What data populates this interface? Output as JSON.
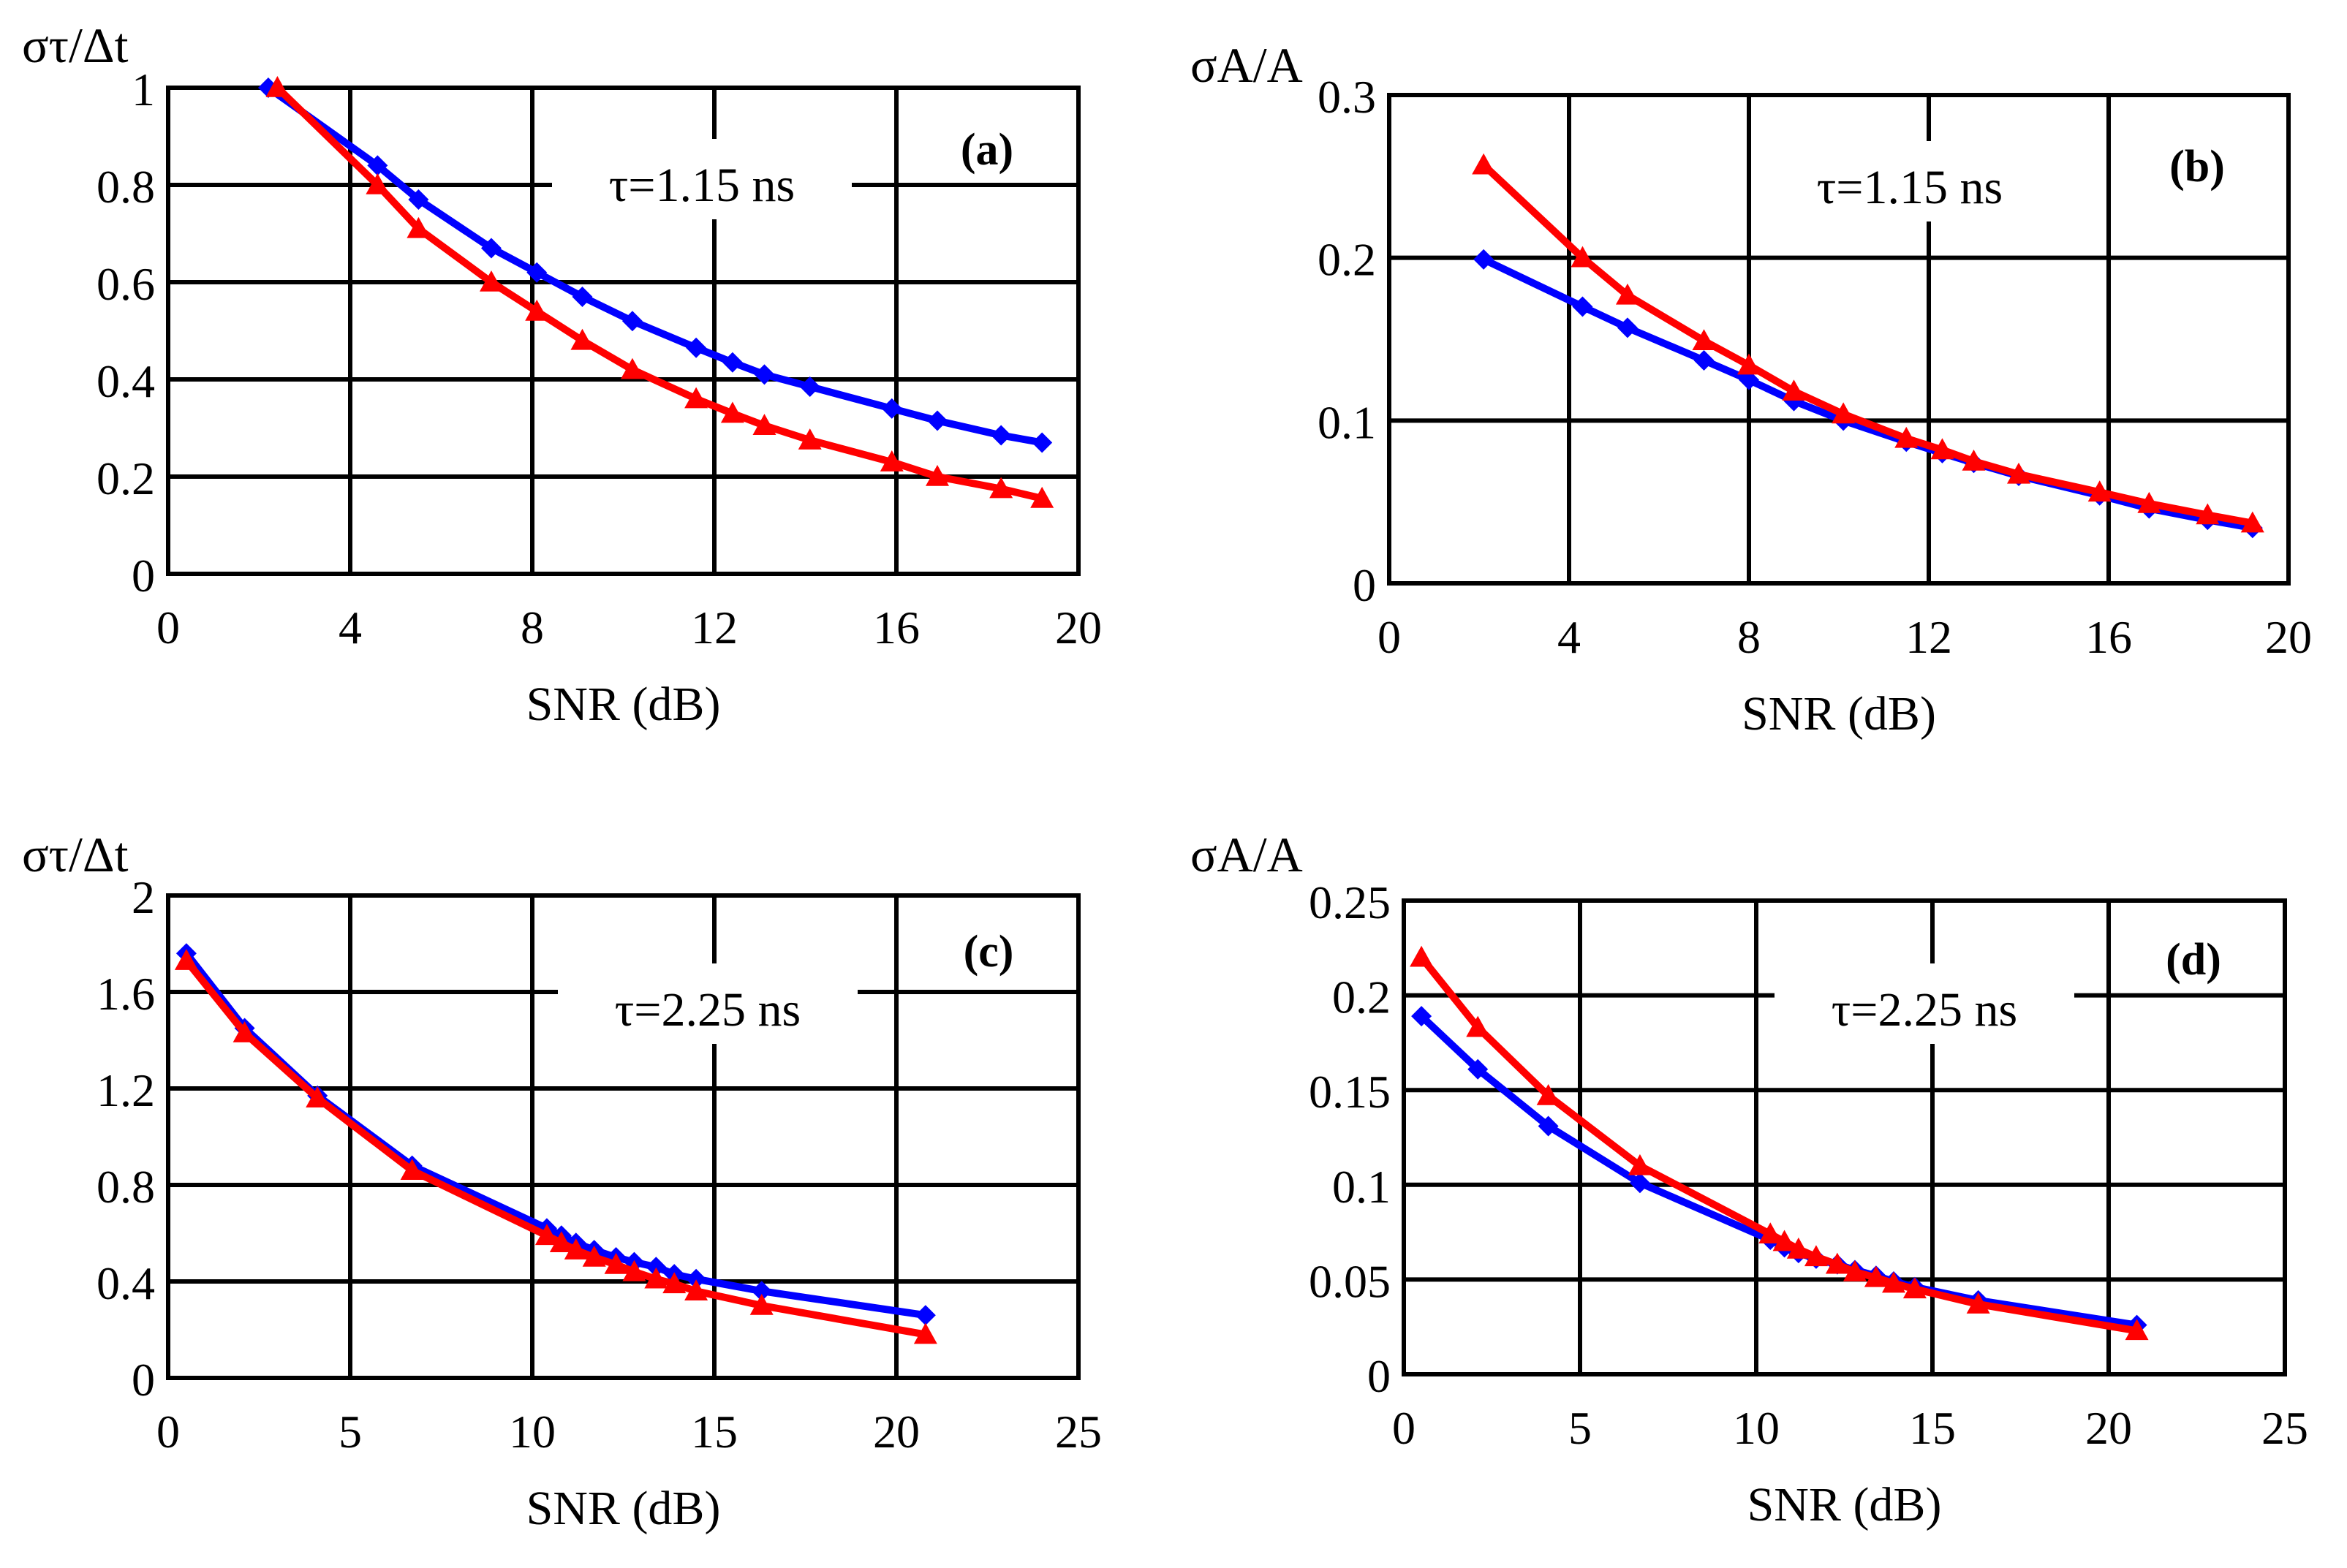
{
  "colors": {
    "blue": "#0000ff",
    "red": "#ff0000",
    "grid": "#000000"
  },
  "chart_data": [
    {
      "type": "line",
      "panel_label": "(a)",
      "annotation": "τ=1.15 ns",
      "ylabel": "στ/Δt",
      "xlabel": "SNR (dB)",
      "xlim": [
        0,
        20
      ],
      "ylim": [
        0,
        1
      ],
      "xticks": [
        0,
        4,
        8,
        12,
        16,
        20
      ],
      "xtick_labels": [
        "0",
        "4",
        "8",
        "12",
        "16",
        "20"
      ],
      "yticks": [
        0,
        0.2,
        0.4,
        0.6,
        0.8,
        1
      ],
      "ytick_labels": [
        "0",
        "0.2",
        "0.4",
        "0.6",
        "0.8",
        "1"
      ],
      "series": [
        {
          "name": "blue",
          "marker": "diamond",
          "x": [
            2.2,
            4.6,
            5.5,
            7.1,
            8.1,
            9.1,
            10.2,
            11.6,
            12.4,
            13.1,
            14.1,
            15.9,
            16.9,
            18.3,
            19.2
          ],
          "y": [
            1.0,
            0.84,
            0.77,
            0.67,
            0.62,
            0.57,
            0.52,
            0.465,
            0.435,
            0.41,
            0.385,
            0.34,
            0.315,
            0.285,
            0.27
          ]
        },
        {
          "name": "red",
          "marker": "triangle",
          "x": [
            2.4,
            4.6,
            5.5,
            7.1,
            8.1,
            9.1,
            10.2,
            11.6,
            12.4,
            13.1,
            14.1,
            15.9,
            16.9,
            18.3,
            19.2
          ],
          "y": [
            1.0,
            0.8,
            0.71,
            0.6,
            0.54,
            0.48,
            0.42,
            0.36,
            0.33,
            0.305,
            0.275,
            0.23,
            0.2,
            0.175,
            0.155
          ]
        }
      ]
    },
    {
      "type": "line",
      "panel_label": "(b)",
      "annotation": "τ=1.15 ns",
      "ylabel": "σA/A",
      "xlabel": "SNR (dB)",
      "xlim": [
        0,
        20
      ],
      "ylim": [
        0,
        0.3
      ],
      "xticks": [
        0,
        4,
        8,
        12,
        16,
        20
      ],
      "xtick_labels": [
        "0",
        "4",
        "8",
        "12",
        "16",
        "20"
      ],
      "yticks": [
        0,
        0.1,
        0.2,
        0.3
      ],
      "ytick_labels": [
        "0",
        "0.1",
        "0.2",
        "0.3"
      ],
      "series": [
        {
          "name": "blue",
          "marker": "diamond",
          "x": [
            2.1,
            4.3,
            5.3,
            7.0,
            8.0,
            9.0,
            10.1,
            11.5,
            12.3,
            13.0,
            14.0,
            15.8,
            16.9,
            18.2,
            19.2
          ],
          "y": [
            0.199,
            0.17,
            0.157,
            0.137,
            0.125,
            0.112,
            0.1,
            0.087,
            0.08,
            0.074,
            0.066,
            0.054,
            0.046,
            0.039,
            0.034
          ]
        },
        {
          "name": "red",
          "marker": "triangle",
          "x": [
            2.1,
            4.3,
            5.3,
            7.0,
            8.0,
            9.0,
            10.1,
            11.5,
            12.3,
            13.0,
            14.0,
            15.8,
            16.9,
            18.2,
            19.2
          ],
          "y": [
            0.257,
            0.2,
            0.177,
            0.149,
            0.134,
            0.118,
            0.104,
            0.089,
            0.082,
            0.075,
            0.067,
            0.056,
            0.049,
            0.042,
            0.037
          ]
        }
      ]
    },
    {
      "type": "line",
      "panel_label": "(c)",
      "annotation": "τ=2.25 ns",
      "ylabel": "στ/Δt",
      "xlabel": "SNR (dB)",
      "xlim": [
        0,
        25
      ],
      "ylim": [
        0,
        2
      ],
      "xticks": [
        0,
        5,
        10,
        15,
        20,
        25
      ],
      "xtick_labels": [
        "0",
        "5",
        "10",
        "15",
        "20",
        "25"
      ],
      "yticks": [
        0,
        0.4,
        0.8,
        1.2,
        1.6,
        2
      ],
      "ytick_labels": [
        "0",
        "0.4",
        "0.8",
        "1.2",
        "1.6",
        "2"
      ],
      "series": [
        {
          "name": "blue",
          "marker": "diamond",
          "x": [
            0.5,
            2.1,
            4.1,
            6.7,
            10.4,
            10.8,
            11.2,
            11.7,
            12.3,
            12.8,
            13.4,
            13.9,
            14.5,
            16.3,
            20.8
          ],
          "y": [
            1.76,
            1.45,
            1.17,
            0.88,
            0.62,
            0.59,
            0.56,
            0.53,
            0.5,
            0.48,
            0.46,
            0.43,
            0.41,
            0.36,
            0.26
          ]
        },
        {
          "name": "red",
          "marker": "triangle",
          "x": [
            0.5,
            2.1,
            4.1,
            6.7,
            10.4,
            10.8,
            11.2,
            11.7,
            12.3,
            12.8,
            13.4,
            13.9,
            14.5,
            16.3,
            20.8
          ],
          "y": [
            1.73,
            1.43,
            1.16,
            0.86,
            0.59,
            0.56,
            0.53,
            0.5,
            0.47,
            0.44,
            0.41,
            0.39,
            0.36,
            0.3,
            0.18
          ]
        }
      ]
    },
    {
      "type": "line",
      "panel_label": "(d)",
      "annotation": "τ=2.25 ns",
      "ylabel": "σA/A",
      "xlabel": "SNR (dB)",
      "xlim": [
        0,
        25
      ],
      "ylim": [
        0,
        0.25
      ],
      "xticks": [
        0,
        5,
        10,
        15,
        20,
        25
      ],
      "xtick_labels": [
        "0",
        "5",
        "10",
        "15",
        "20",
        "25"
      ],
      "yticks": [
        0,
        0.05,
        0.1,
        0.15,
        0.2,
        0.25
      ],
      "ytick_labels": [
        "0",
        "0.05",
        "0.1",
        "0.15",
        "0.2",
        "0.25"
      ],
      "series": [
        {
          "name": "blue",
          "marker": "diamond",
          "x": [
            0.5,
            2.1,
            4.1,
            6.7,
            10.4,
            10.8,
            11.2,
            11.7,
            12.3,
            12.8,
            13.4,
            13.9,
            14.5,
            16.3,
            20.8
          ],
          "y": [
            0.189,
            0.161,
            0.131,
            0.101,
            0.071,
            0.067,
            0.064,
            0.061,
            0.058,
            0.055,
            0.052,
            0.049,
            0.046,
            0.039,
            0.026
          ]
        },
        {
          "name": "red",
          "marker": "triangle",
          "x": [
            0.5,
            2.1,
            4.1,
            6.7,
            10.4,
            10.8,
            11.2,
            11.7,
            12.3,
            12.8,
            13.4,
            13.9,
            14.5,
            16.3,
            20.8
          ],
          "y": [
            0.22,
            0.183,
            0.147,
            0.11,
            0.074,
            0.07,
            0.066,
            0.062,
            0.058,
            0.054,
            0.051,
            0.048,
            0.045,
            0.037,
            0.023
          ]
        }
      ]
    }
  ]
}
